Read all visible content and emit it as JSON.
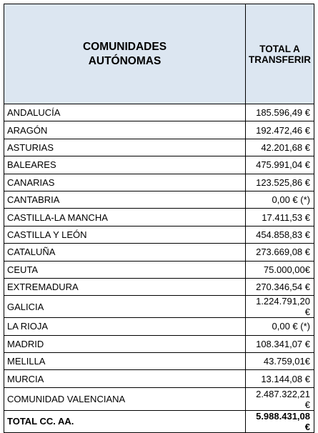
{
  "table": {
    "header": [
      "COMUNIDADES AUTÓNOMAS",
      "TOTAL A TRANSFERIR"
    ],
    "rows": [
      [
        "ANDALUCÍA",
        "185.596,49 €"
      ],
      [
        "ARAGÓN",
        "192.472,46 €"
      ],
      [
        "ASTURIAS",
        "42.201,68 €"
      ],
      [
        "BALEARES",
        "475.991,04 €"
      ],
      [
        "CANARIAS",
        "123.525,86 €"
      ],
      [
        "CANTABRIA",
        "0,00 € (*)"
      ],
      [
        "CASTILLA-LA MANCHA",
        "17.411,53 €"
      ],
      [
        "CASTILLA Y LEÓN",
        "454.858,83 €"
      ],
      [
        "CATALUÑA",
        "273.669,08 €"
      ],
      [
        "CEUTA",
        "75.000,00€"
      ],
      [
        "EXTREMADURA",
        "270.346,54 €"
      ],
      [
        "GALICIA",
        "1.224.791,20 €"
      ],
      [
        "LA RIOJA",
        "0,00 € (*)"
      ],
      [
        "MADRID",
        "108.341,07 €"
      ],
      [
        "MELILLA",
        "43.759,01€"
      ],
      [
        "MURCIA",
        "13.144,08 €"
      ],
      [
        "COMUNIDAD VALENCIANA",
        "2.487.322,21 €"
      ]
    ],
    "total": [
      "TOTAL CC. AA.",
      "5.988.431,08 €"
    ]
  }
}
